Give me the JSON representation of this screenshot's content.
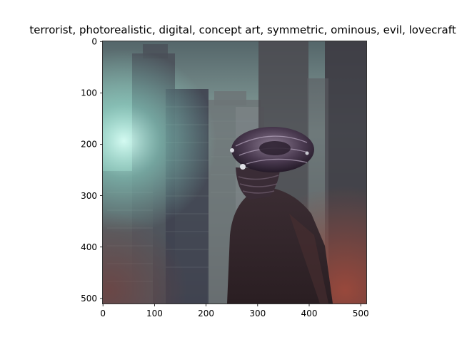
{
  "figure": {
    "title": "terrorist,  photorealistic, digital, concept art, symmetric, ominous, evil, lovecraft"
  },
  "image": {
    "description_icon": "cyberpunk-figure-image",
    "colors": {
      "sky": "#8fa7a1",
      "glow": "#b9f3e8",
      "buildings_dark": "#3b3c45",
      "buildings_mid": "#6b7478",
      "figure_body": "#3a2c30",
      "helmet": "#5a4a5e",
      "floor_red": "#7a4036"
    }
  },
  "axes": {
    "x_ticks": [
      "0",
      "100",
      "200",
      "300",
      "400",
      "500"
    ],
    "y_ticks": [
      "0",
      "100",
      "200",
      "300",
      "400",
      "500"
    ],
    "x_range": [
      0,
      512
    ],
    "y_range": [
      0,
      512
    ]
  }
}
